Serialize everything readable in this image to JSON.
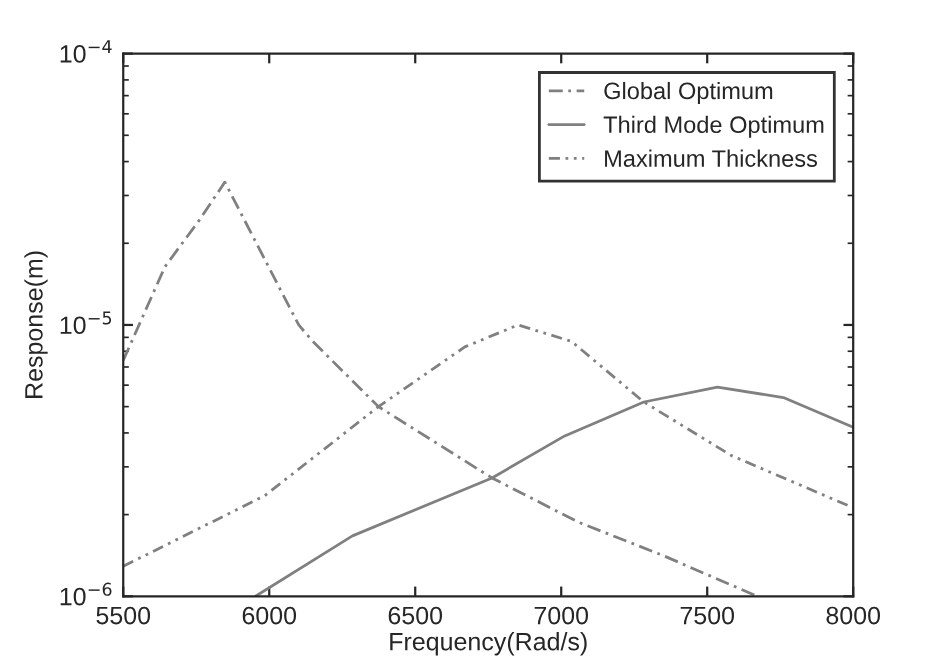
{
  "chart_data": {
    "type": "line",
    "xlabel": "Frequency(Rad/s)",
    "ylabel": "Response(m)",
    "log": "y",
    "xlim": [
      5500,
      8000
    ],
    "xticks": [
      5500,
      6000,
      6500,
      7000,
      7500,
      8000
    ],
    "ylim": [
      1e-06,
      0.0001
    ],
    "yticks": [
      {
        "value": 1e-06,
        "label": "10$^{−6}$"
      },
      {
        "value": 1e-05,
        "label": "10$^{−5}$"
      },
      {
        "value": 0.0001,
        "label": "10$^{−4}$"
      }
    ],
    "legend": "top right",
    "grid": false,
    "series": [
      {
        "name": "Global Optimum",
        "color": "#808080",
        "line_style": "dashed",
        "x": [
          5500,
          5643,
          5760,
          5848,
          6012,
          6101,
          6149,
          6374,
          6763,
          7057,
          7351,
          7672
        ],
        "values": [
          7.4e-06,
          1.64e-05,
          2.43e-05,
          3.36e-05,
          1.53e-05,
          1e-05,
          8.7e-06,
          5e-06,
          2.73e-06,
          1.88e-06,
          1.41e-06,
          1e-06
        ]
      },
      {
        "name": "Third Mode Optimum",
        "color": "#808080",
        "line_style": "solid",
        "x": [
          5953,
          6285,
          6763,
          7012,
          7283,
          7535,
          7761,
          8000
        ],
        "values": [
          1e-06,
          1.67e-06,
          2.73e-06,
          3.9e-06,
          5.2e-06,
          5.9e-06,
          5.4e-06,
          4.2e-06
        ]
      },
      {
        "name": "Maximum Thickness",
        "color": "#808080",
        "line_style": "dotted",
        "x": [
          5500,
          5985,
          6374,
          6670,
          6852,
          7035,
          7283,
          7583,
          8000
        ],
        "values": [
          1.29e-06,
          2.35e-06,
          5e-06,
          8.3e-06,
          1e-05,
          8.7e-06,
          5.2e-06,
          3.3e-06,
          2.12e-06
        ]
      }
    ]
  }
}
